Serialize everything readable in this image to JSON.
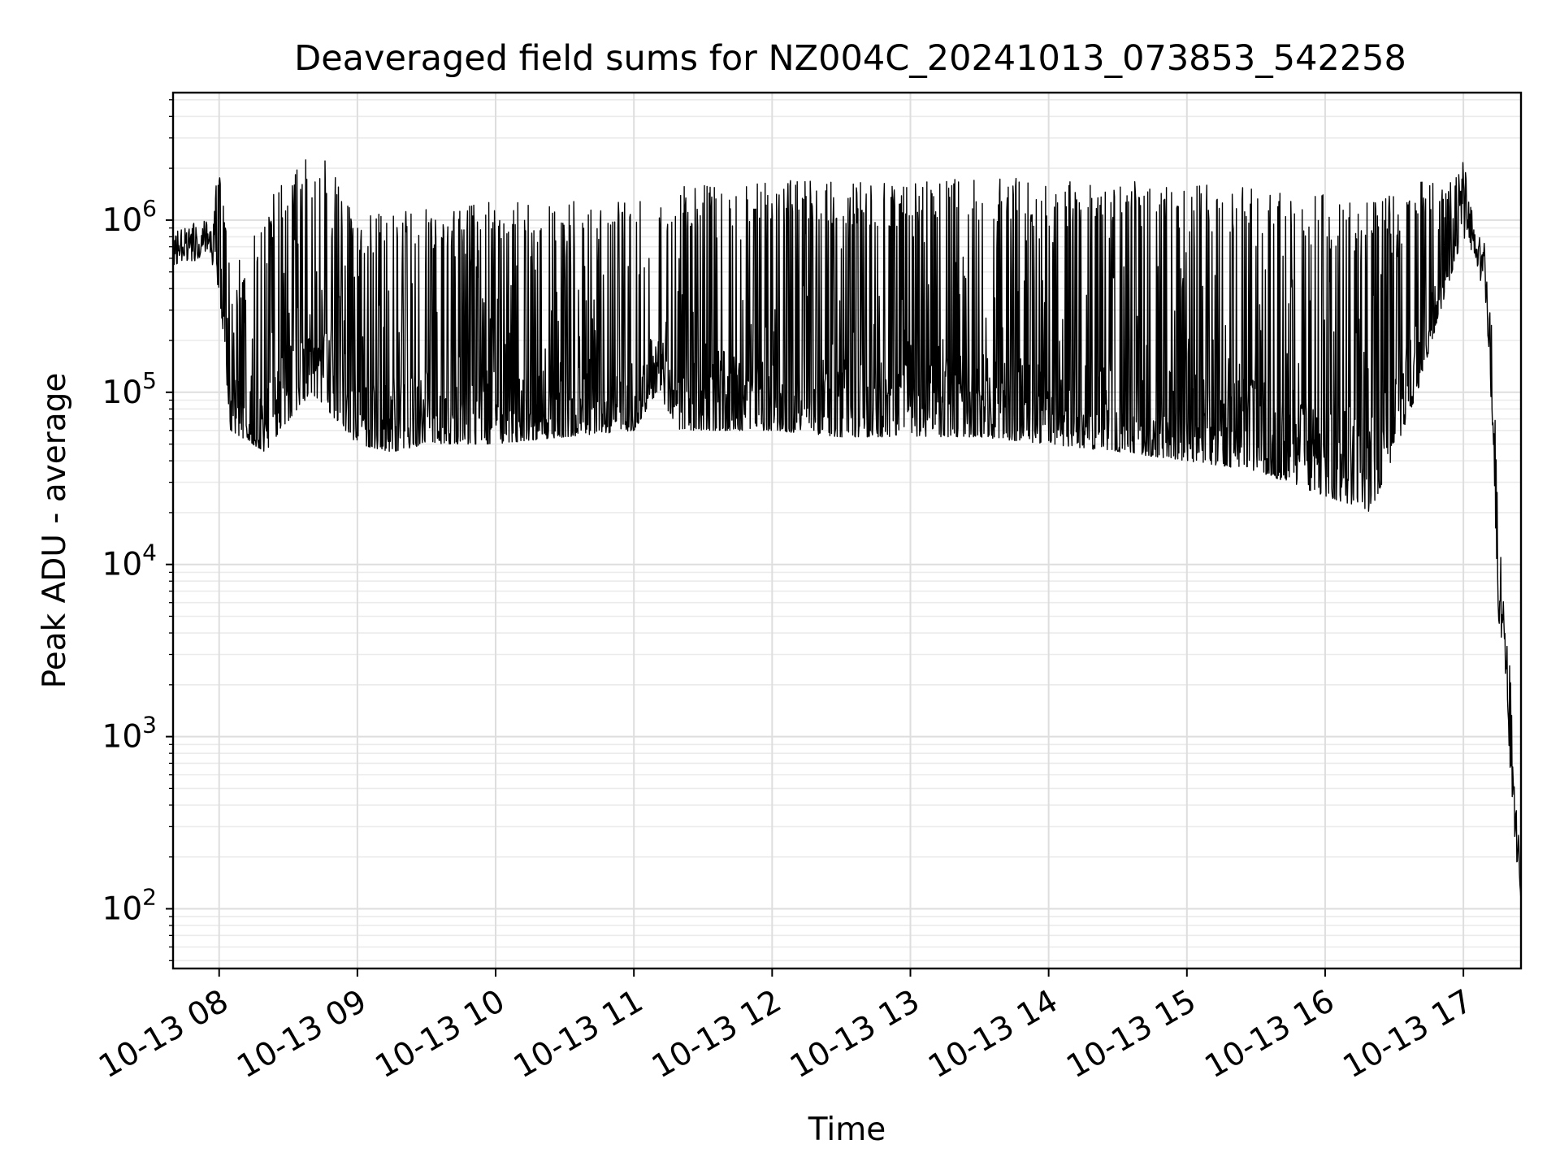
{
  "chart_data": {
    "type": "line",
    "title": "Deaveraged field sums for NZ004C_20241013_073853_542258",
    "xlabel": "Time",
    "ylabel": "Peak ADU - average",
    "yscale": "log",
    "grid": "on (major and minor)",
    "line_color": "#000000",
    "xlim": [
      "2024-10-13 07:40",
      "2024-10-13 17:25"
    ],
    "ylim": [
      45,
      5500000
    ],
    "x_ticks": [
      "10-13 08",
      "10-13 09",
      "10-13 10",
      "10-13 11",
      "10-13 12",
      "10-13 13",
      "10-13 14",
      "10-13 15",
      "10-13 16",
      "10-13 17"
    ],
    "y_ticks": [
      {
        "base": "10",
        "exp": "2"
      },
      {
        "base": "10",
        "exp": "3"
      },
      {
        "base": "10",
        "exp": "4"
      },
      {
        "base": "10",
        "exp": "5"
      },
      {
        "base": "10",
        "exp": "6"
      }
    ],
    "series_profile": {
      "description": "envelope of the noisy signal read from the plot: time of day, upper envelope (spike peaks), lower envelope (baseline) in ADU",
      "time": [
        "07:40",
        "07:55",
        "08:00",
        "08:05",
        "08:20",
        "08:40",
        "09:00",
        "09:15",
        "09:30",
        "10:00",
        "10:30",
        "11:00",
        "11:10",
        "11:20",
        "12:00",
        "12:30",
        "13:00",
        "13:30",
        "14:00",
        "14:30",
        "15:00",
        "15:30",
        "16:00",
        "16:20",
        "16:40",
        "16:55",
        "17:00",
        "17:05",
        "17:10",
        "17:13",
        "17:15",
        "17:18",
        "17:20",
        "17:22",
        "17:25"
      ],
      "upper": [
        900000,
        1000000,
        2000000,
        500000,
        1200000,
        3200000,
        1100000,
        1100000,
        1200000,
        1300000,
        1300000,
        1300000,
        1300000,
        1600000,
        1700000,
        1700000,
        1700000,
        1800000,
        1700000,
        1700000,
        1600000,
        1600000,
        1400000,
        1300000,
        1700000,
        1700000,
        2200000,
        1000000,
        700000,
        200000,
        20000,
        5000,
        3500,
        600,
        180
      ],
      "lower": [
        550000,
        600000,
        400000,
        60000,
        45000,
        100000,
        50000,
        45000,
        50000,
        50000,
        55000,
        60000,
        100000,
        60000,
        60000,
        55000,
        55000,
        55000,
        50000,
        45000,
        40000,
        35000,
        25000,
        20000,
        100000,
        500000,
        800000,
        600000,
        300000,
        50000,
        5000,
        2500,
        800,
        200,
        100
      ]
    }
  }
}
